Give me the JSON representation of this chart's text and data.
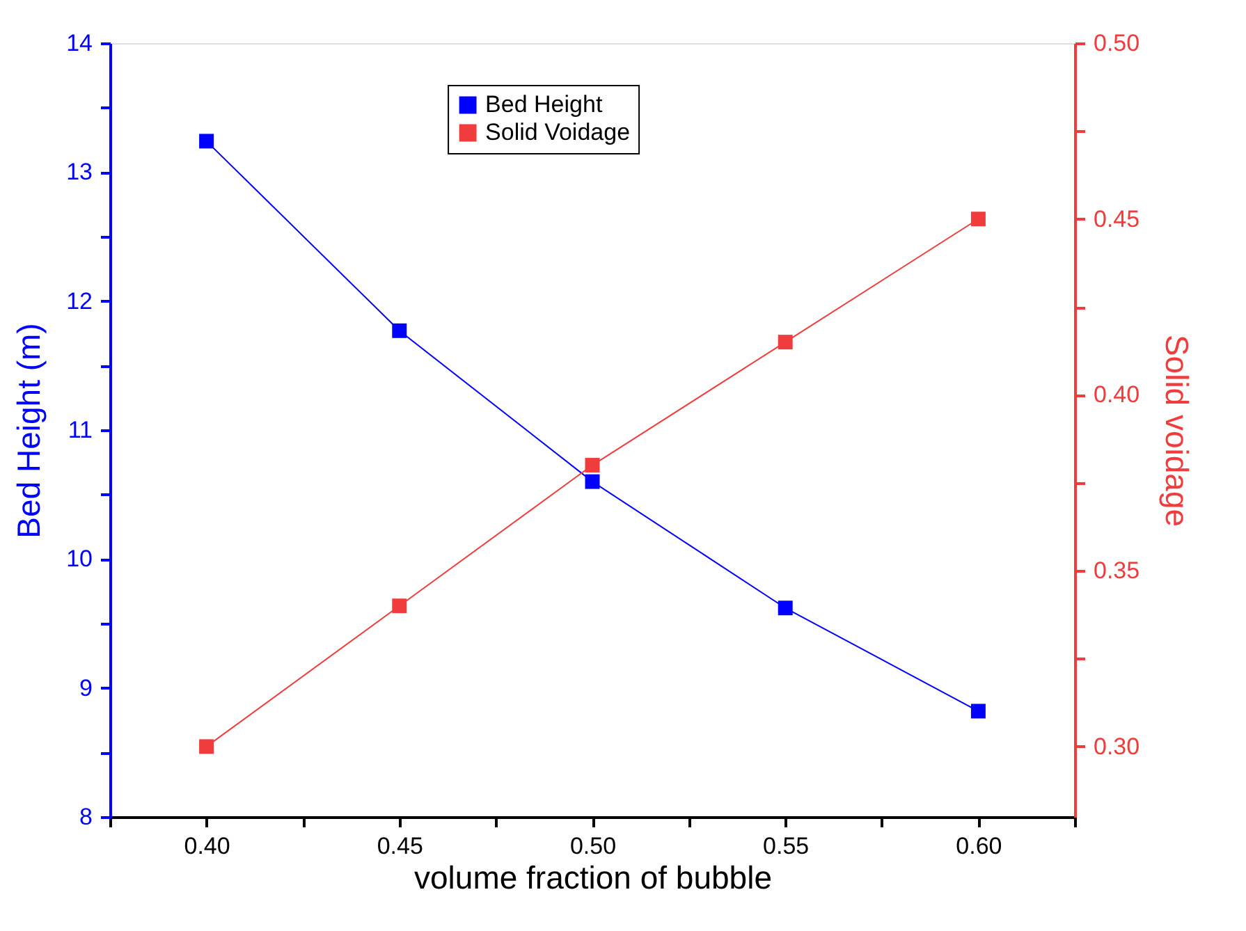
{
  "chart_data": {
    "type": "line",
    "xlabel": "volume fraction of bubble",
    "ylabel": "Bed Height (m)",
    "y2label": "Solid voidage",
    "x": [
      0.4,
      0.45,
      0.5,
      0.55,
      0.6
    ],
    "series": [
      {
        "name": "Bed Height",
        "color": "#0000ff",
        "values": [
          13.24,
          11.77,
          10.6,
          9.62,
          8.82
        ]
      },
      {
        "name": "Solid Voidage",
        "color": "#f03c3c",
        "axis": "y2",
        "values": [
          0.3,
          0.34,
          0.38,
          0.415,
          0.45
        ]
      }
    ],
    "xlim": [
      0.375,
      0.625
    ],
    "xticks": [
      {
        "value": 0.375,
        "label": null
      },
      {
        "value": 0.4,
        "label": "0.40"
      },
      {
        "value": 0.425,
        "label": null
      },
      {
        "value": 0.45,
        "label": "0.45"
      },
      {
        "value": 0.475,
        "label": null
      },
      {
        "value": 0.5,
        "label": "0.50"
      },
      {
        "value": 0.525,
        "label": null
      },
      {
        "value": 0.55,
        "label": "0.55"
      },
      {
        "value": 0.575,
        "label": null
      },
      {
        "value": 0.6,
        "label": "0.60"
      },
      {
        "value": 0.625,
        "label": null
      }
    ],
    "ylim": [
      8,
      14
    ],
    "yticks": [
      8,
      {
        "value": 8.5,
        "label": null
      },
      9,
      {
        "value": 9.5,
        "label": null
      },
      10,
      {
        "value": 10.5,
        "label": null
      },
      11,
      {
        "value": 11.5,
        "label": null
      },
      12,
      {
        "value": 12.5,
        "label": null
      },
      13,
      {
        "value": 13.5,
        "label": null
      },
      14
    ],
    "y2lim": [
      0.28,
      0.5
    ],
    "y2ticks": [
      {
        "value": 0.3,
        "label": "0.30"
      },
      {
        "value": 0.325,
        "label": null
      },
      {
        "value": 0.35,
        "label": "0.35"
      },
      {
        "value": 0.375,
        "label": null
      },
      {
        "value": 0.4,
        "label": "0.40"
      },
      {
        "value": 0.425,
        "label": null
      },
      {
        "value": 0.45,
        "label": "0.45"
      },
      {
        "value": 0.475,
        "label": null
      },
      {
        "value": 0.5,
        "label": "0.50"
      }
    ],
    "legend": "top",
    "marker": "square",
    "line_style": "solid",
    "grid": false
  }
}
